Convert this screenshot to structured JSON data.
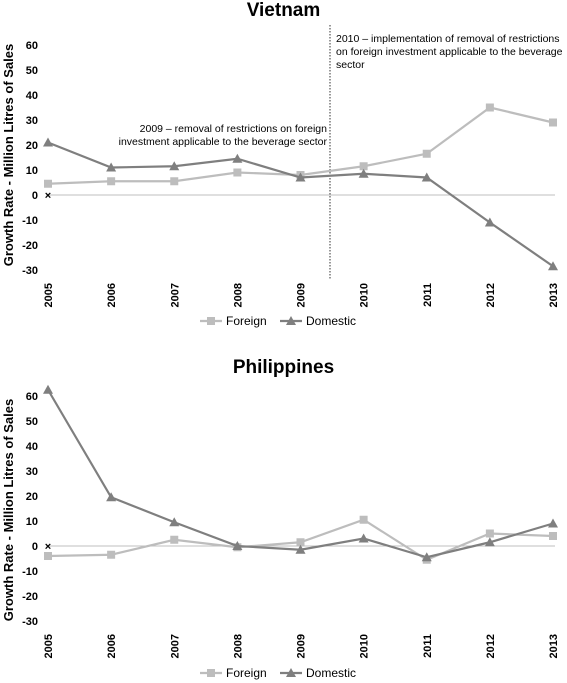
{
  "chart_data": [
    {
      "type": "line",
      "title": "Vietnam",
      "ylabel": "Growth Rate - Million Litres of Sales",
      "x": [
        "2005",
        "2006",
        "2007",
        "2008",
        "2009",
        "2010",
        "2011",
        "2012",
        "2013"
      ],
      "ylim": [
        -30,
        60
      ],
      "yticks": [
        -30,
        -20,
        -10,
        0,
        10,
        20,
        30,
        40,
        50,
        60
      ],
      "grid": false,
      "legend": "bottom",
      "series": [
        {
          "name": "Foreign",
          "color": "#bdbdbd",
          "marker": "square",
          "values": [
            4.5,
            5.5,
            5.5,
            9,
            8,
            11.5,
            16.5,
            35,
            29
          ]
        },
        {
          "name": "Domestic",
          "color": "#7f7f7f",
          "marker": "triangle",
          "values": [
            21,
            11,
            11.5,
            14.5,
            7,
            8.5,
            7,
            -11,
            -28.5
          ]
        }
      ],
      "annotations": [
        {
          "lines": [
            "2009 –  removal of restrictions on foreign",
            "investment applicable to the beverage sector"
          ]
        },
        {
          "lines": [
            "2010 – implementation of removal of restrictions",
            "on foreign investment applicable to the beverage",
            "sector"
          ]
        }
      ]
    },
    {
      "type": "line",
      "title": "Philippines",
      "ylabel": "Growth Rate - Million Litres of Sales",
      "x": [
        "2005",
        "2006",
        "2007",
        "2008",
        "2009",
        "2010",
        "2011",
        "2012",
        "2013"
      ],
      "ylim": [
        -30,
        60
      ],
      "yticks": [
        -30,
        -20,
        -10,
        0,
        10,
        20,
        30,
        40,
        50,
        60
      ],
      "grid": false,
      "legend": "bottom",
      "series": [
        {
          "name": "Foreign",
          "color": "#bdbdbd",
          "marker": "square",
          "values": [
            -4,
            -3.5,
            2.5,
            -0.5,
            1.5,
            10.5,
            -5.5,
            5,
            4
          ]
        },
        {
          "name": "Domestic",
          "color": "#7f7f7f",
          "marker": "triangle",
          "values": [
            62.5,
            19.5,
            9.5,
            0,
            -1.5,
            3,
            -4.5,
            1.5,
            9
          ]
        }
      ]
    }
  ]
}
